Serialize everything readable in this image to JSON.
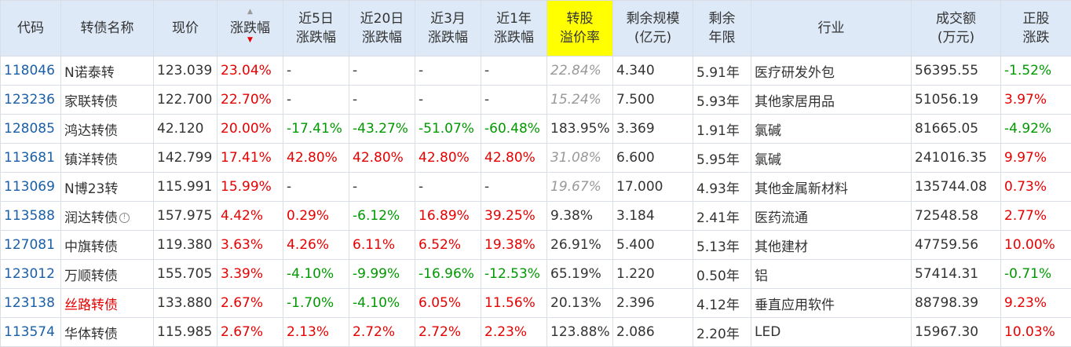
{
  "headers": {
    "code": "代码",
    "name": "转债名称",
    "price": "现价",
    "change": "涨跌幅",
    "chg5d_1": "近5日",
    "chg5d_2": "涨跌幅",
    "chg20d_1": "近20日",
    "chg20d_2": "涨跌幅",
    "chg3m_1": "近3月",
    "chg3m_2": "涨跌幅",
    "chg1y_1": "近1年",
    "chg1y_2": "涨跌幅",
    "premium_1": "转股",
    "premium_2": "溢价率",
    "scale_1": "剩余规模",
    "scale_2": "(亿元)",
    "years_1": "剩余",
    "years_2": "年限",
    "industry": "行业",
    "turnover_1": "成交额",
    "turnover_2": "(万元)",
    "stock_1": "正股",
    "stock_2": "涨跌"
  },
  "sort_icons": {
    "up": "▲",
    "down": "▼"
  },
  "info_icon": "!",
  "colors": {
    "header_bg": "#dde9f7",
    "highlight": "#ffff00",
    "up": "#e60000",
    "down": "#009900",
    "code": "#1a5fa8"
  },
  "rows": [
    {
      "code": "118046",
      "name": "N诺泰转",
      "price": "123.039",
      "change": "23.04%",
      "c5": "-",
      "c20": "-",
      "c3m": "-",
      "c1y": "-",
      "premium": "22.84%",
      "scale": "4.340",
      "years": "5.91年",
      "industry": "医疗研发外包",
      "turnover": "56395.55",
      "stock": "-1.52%"
    },
    {
      "code": "123236",
      "name": "家联转债",
      "price": "122.700",
      "change": "22.70%",
      "c5": "-",
      "c20": "-",
      "c3m": "-",
      "c1y": "-",
      "premium": "15.24%",
      "scale": "7.500",
      "years": "5.93年",
      "industry": "其他家居用品",
      "turnover": "51056.19",
      "stock": "3.97%"
    },
    {
      "code": "128085",
      "name": "鸿达转债",
      "price": "42.120",
      "change": "20.00%",
      "c5": "-17.41%",
      "c20": "-43.27%",
      "c3m": "-51.07%",
      "c1y": "-60.48%",
      "premium": "183.95%",
      "scale": "3.369",
      "years": "1.91年",
      "industry": "氯碱",
      "turnover": "81665.05",
      "stock": "-4.92%"
    },
    {
      "code": "113681",
      "name": "镇洋转债",
      "price": "142.799",
      "change": "17.41%",
      "c5": "42.80%",
      "c20": "42.80%",
      "c3m": "42.80%",
      "c1y": "42.80%",
      "premium": "31.08%",
      "scale": "6.600",
      "years": "5.95年",
      "industry": "氯碱",
      "turnover": "241016.35",
      "stock": "9.97%"
    },
    {
      "code": "113069",
      "name": "N博23转",
      "price": "115.991",
      "change": "15.99%",
      "c5": "-",
      "c20": "-",
      "c3m": "-",
      "c1y": "-",
      "premium": "19.67%",
      "scale": "17.000",
      "years": "4.93年",
      "industry": "其他金属新材料",
      "turnover": "135744.08",
      "stock": "0.73%"
    },
    {
      "code": "113588",
      "name": "润达转债",
      "price": "157.975",
      "change": "4.42%",
      "c5": "0.29%",
      "c20": "-6.12%",
      "c3m": "16.89%",
      "c1y": "39.25%",
      "premium": "9.38%",
      "scale": "3.184",
      "years": "2.41年",
      "industry": "医药流通",
      "turnover": "72548.58",
      "stock": "2.77%"
    },
    {
      "code": "127081",
      "name": "中旗转债",
      "price": "119.380",
      "change": "3.63%",
      "c5": "4.26%",
      "c20": "6.11%",
      "c3m": "6.52%",
      "c1y": "19.38%",
      "premium": "26.91%",
      "scale": "5.400",
      "years": "5.13年",
      "industry": "其他建材",
      "turnover": "47759.56",
      "stock": "10.00%"
    },
    {
      "code": "123012",
      "name": "万顺转债",
      "price": "155.705",
      "change": "3.39%",
      "c5": "-4.10%",
      "c20": "-9.99%",
      "c3m": "-16.96%",
      "c1y": "-12.53%",
      "premium": "65.19%",
      "scale": "1.220",
      "years": "0.50年",
      "industry": "铝",
      "turnover": "57414.31",
      "stock": "-0.71%"
    },
    {
      "code": "123138",
      "name": "丝路转债",
      "price": "133.880",
      "change": "2.67%",
      "c5": "-1.70%",
      "c20": "-4.10%",
      "c3m": "6.05%",
      "c1y": "11.56%",
      "premium": "20.13%",
      "scale": "2.396",
      "years": "4.12年",
      "industry": "垂直应用软件",
      "turnover": "88798.39",
      "stock": "9.23%"
    },
    {
      "code": "113574",
      "name": "华体转债",
      "price": "115.985",
      "change": "2.67%",
      "c5": "2.13%",
      "c20": "2.72%",
      "c3m": "2.72%",
      "c1y": "2.23%",
      "premium": "123.88%",
      "scale": "2.086",
      "years": "2.20年",
      "industry": "LED",
      "turnover": "15967.30",
      "stock": "10.03%"
    }
  ]
}
